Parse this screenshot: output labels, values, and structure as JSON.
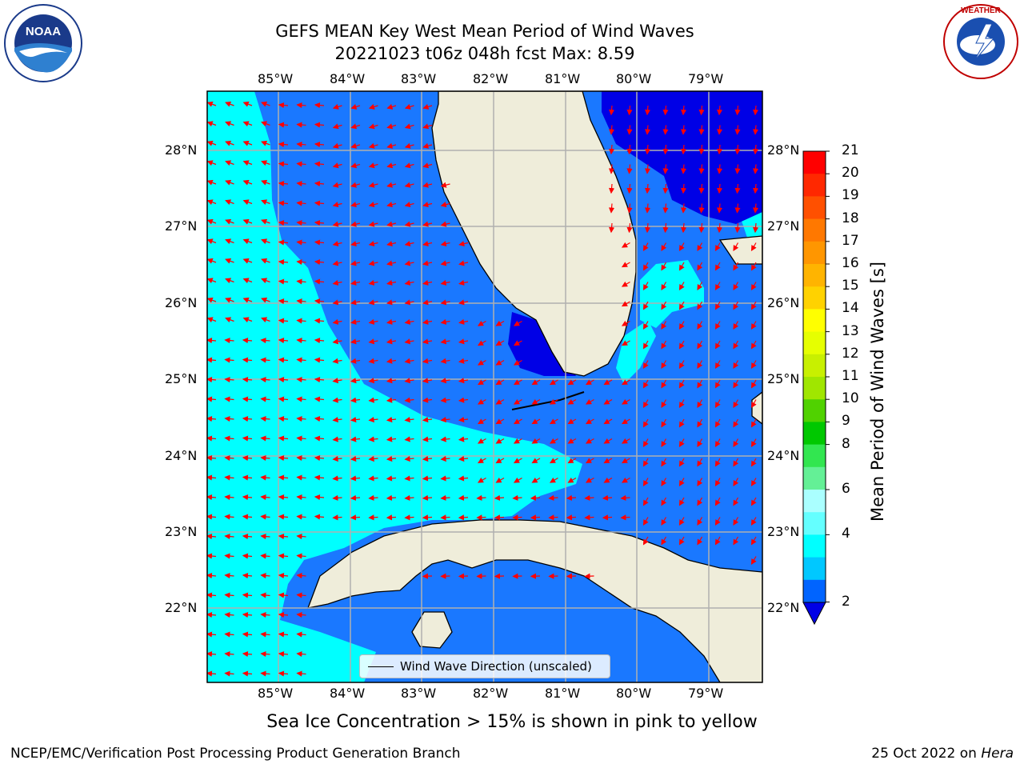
{
  "title_line1": "GEFS MEAN Key West Mean Period of Wind Waves",
  "title_line2": "20221023 t06z 048h fcst   Max: 8.59",
  "lon_labels": [
    "85°W",
    "84°W",
    "83°W",
    "82°W",
    "81°W",
    "80°W",
    "79°W"
  ],
  "lat_labels": [
    "28°N",
    "27°N",
    "26°N",
    "25°N",
    "24°N",
    "23°N",
    "22°N"
  ],
  "legend_label": "Wind Wave Direction (unscaled)",
  "caption": "Sea Ice Concentration > 15% is shown in pink to yellow",
  "footer_left": "NCEP/EMC/Verification Post Processing Product Generation Branch",
  "footer_right_prefix": "25 Oct 2022 on ",
  "footer_right_host": "Hera",
  "colorbar": {
    "title": "Mean Period of Wind Waves [s]",
    "ticks": [
      "21",
      "20",
      "19",
      "18",
      "17",
      "16",
      "15",
      "14",
      "13",
      "12",
      "11",
      "10",
      "9",
      "8",
      "6",
      "4",
      "2"
    ],
    "colors": [
      "#ff0000",
      "#ff2800",
      "#ff5000",
      "#ff7800",
      "#ff9600",
      "#ffb400",
      "#ffd200",
      "#ffff00",
      "#e6ff00",
      "#c8f000",
      "#a0e600",
      "#50d200",
      "#00c800",
      "#32e650",
      "#64f096",
      "#aaffff",
      "#64ffff",
      "#00ffff",
      "#00c8ff",
      "#0064ff"
    ],
    "under_color": "#0000e6"
  },
  "colors": {
    "land": "#efedda",
    "wave_2_4": "#1a78ff",
    "wave_4_6": "#00ffff",
    "wave_low": "#0000e6",
    "arrow": "#ff0000",
    "grid": "#b0b0b0"
  }
}
